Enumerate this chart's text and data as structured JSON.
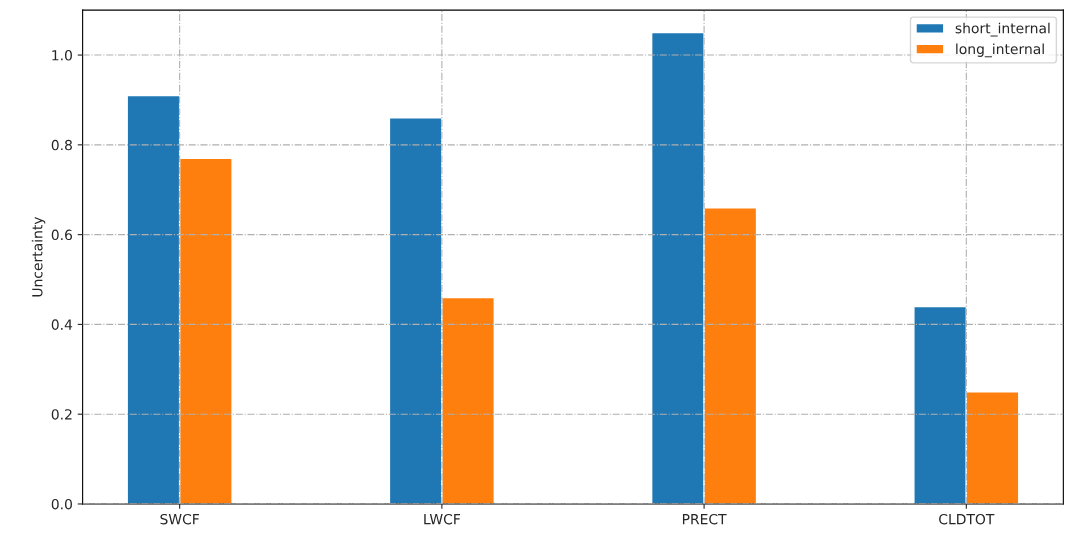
{
  "chart_data": {
    "type": "bar",
    "ylabel": "Uncertainty",
    "categories": [
      "SWCF",
      "LWCF",
      "PRECT",
      "CLDTOT"
    ],
    "series": [
      {
        "name": "short_internal",
        "color": "#1f77b4",
        "values": [
          0.91,
          0.86,
          1.05,
          0.44
        ]
      },
      {
        "name": "long_internal",
        "color": "#ff7f0e",
        "values": [
          0.77,
          0.46,
          0.66,
          0.25
        ]
      }
    ],
    "ylim": [
      0,
      1.1
    ],
    "yticks": [
      {
        "value": 0,
        "label": "0.0"
      },
      0.2,
      0.4,
      0.6,
      0.8,
      {
        "value": 1,
        "label": "1.0"
      }
    ],
    "grid": true,
    "legend": "top right"
  }
}
